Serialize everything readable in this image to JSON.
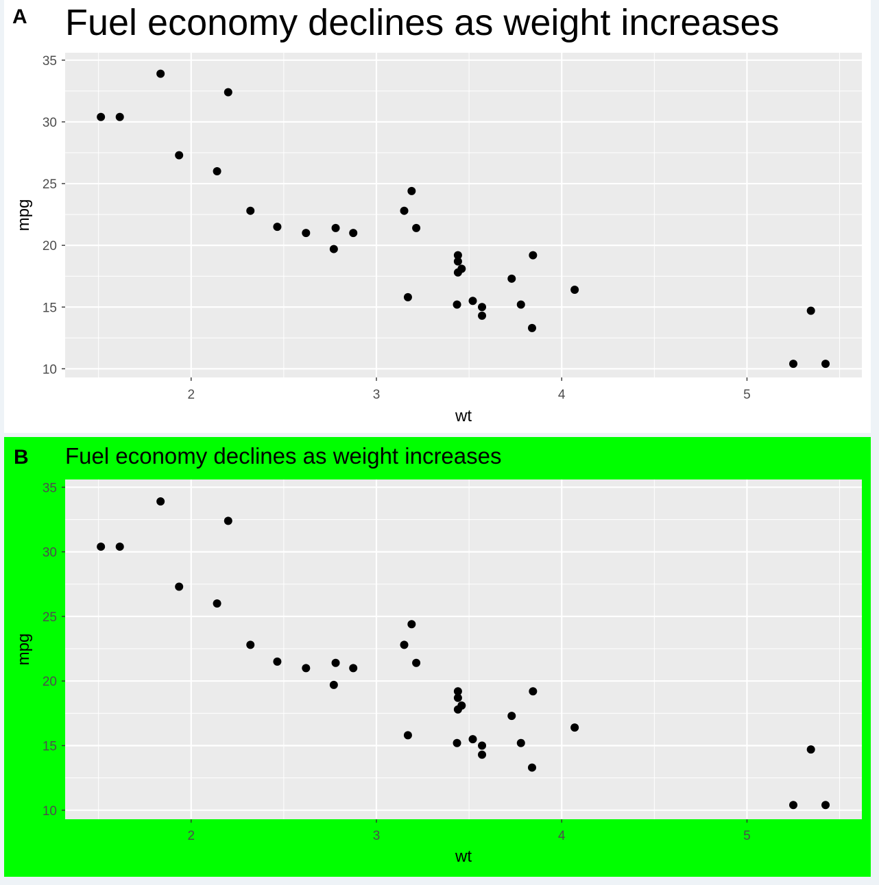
{
  "chart_data": [
    {
      "type": "scatter",
      "tag": "A",
      "title": "Fuel economy declines as weight increases",
      "xlabel": "wt",
      "ylabel": "mpg",
      "xlim": [
        1.32,
        5.62
      ],
      "ylim": [
        9.3,
        35.6
      ],
      "xticks": [
        2,
        3,
        4,
        5
      ],
      "yticks": [
        10,
        15,
        20,
        25,
        30,
        35
      ],
      "grid": true,
      "background": "#ffffff",
      "panel_background": "#ebebeb",
      "point_color": "#000000",
      "x": [
        2.62,
        2.875,
        2.32,
        3.215,
        3.44,
        3.46,
        3.57,
        3.19,
        3.15,
        3.44,
        3.44,
        4.07,
        3.73,
        3.78,
        5.25,
        5.424,
        5.345,
        2.2,
        1.615,
        1.835,
        2.465,
        3.52,
        3.435,
        3.84,
        3.845,
        1.935,
        2.14,
        1.513,
        3.17,
        2.77,
        3.57,
        2.78
      ],
      "y": [
        21.0,
        21.0,
        22.8,
        21.4,
        18.7,
        18.1,
        14.3,
        24.4,
        22.8,
        19.2,
        17.8,
        16.4,
        17.3,
        15.2,
        10.4,
        10.4,
        14.7,
        32.4,
        30.4,
        33.9,
        21.5,
        15.5,
        15.2,
        13.3,
        19.2,
        27.3,
        26.0,
        30.4,
        15.8,
        19.7,
        15.0,
        21.4
      ]
    },
    {
      "type": "scatter",
      "tag": "B",
      "title": "Fuel economy declines as weight increases",
      "xlabel": "wt",
      "ylabel": "mpg",
      "xlim": [
        1.32,
        5.62
      ],
      "ylim": [
        9.3,
        35.6
      ],
      "xticks": [
        2,
        3,
        4,
        5
      ],
      "yticks": [
        10,
        15,
        20,
        25,
        30,
        35
      ],
      "grid": true,
      "background": "#00ff00",
      "panel_background": "#ebebeb",
      "point_color": "#000000",
      "x": [
        2.62,
        2.875,
        2.32,
        3.215,
        3.44,
        3.46,
        3.57,
        3.19,
        3.15,
        3.44,
        3.44,
        4.07,
        3.73,
        3.78,
        5.25,
        5.424,
        5.345,
        2.2,
        1.615,
        1.835,
        2.465,
        3.52,
        3.435,
        3.84,
        3.845,
        1.935,
        2.14,
        1.513,
        3.17,
        2.77,
        3.57,
        2.78
      ],
      "y": [
        21.0,
        21.0,
        22.8,
        21.4,
        18.7,
        18.1,
        14.3,
        24.4,
        22.8,
        19.2,
        17.8,
        16.4,
        17.3,
        15.2,
        10.4,
        10.4,
        14.7,
        32.4,
        30.4,
        33.9,
        21.5,
        15.5,
        15.2,
        13.3,
        19.2,
        27.3,
        26.0,
        30.4,
        15.8,
        19.7,
        15.0,
        21.4
      ]
    }
  ]
}
